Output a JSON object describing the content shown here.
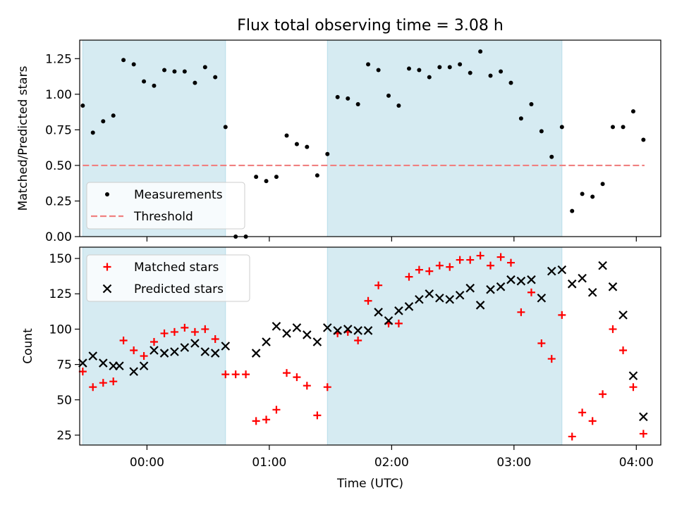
{
  "title": "Flux total observing time = 3.08 h",
  "colors": {
    "shade": "#add8e6",
    "measurement": "#000000",
    "threshold": "#f08080",
    "matched": "#ff0000",
    "predicted": "#000000"
  },
  "chart_data": [
    {
      "type": "scatter",
      "name": "ratio-panel",
      "ylabel": "Matched/Predicted stars",
      "xlabel": "",
      "xlim": [
        -0.55,
        4.2
      ],
      "ylim": [
        0,
        1.38
      ],
      "yticks": [
        0,
        0.25,
        0.5,
        0.75,
        1.0,
        1.25
      ],
      "ytick_labels": [
        "0.00",
        "0.25",
        "0.50",
        "0.75",
        "1.00",
        "1.25"
      ],
      "shaded_intervals": [
        [
          -0.525,
          0.642
        ],
        [
          1.475,
          3.392
        ]
      ],
      "legend": [
        "Measurements",
        "Threshold"
      ],
      "threshold": {
        "name": "Threshold",
        "y": 0.5,
        "x": [
          -0.525,
          4.067
        ]
      },
      "series": [
        {
          "name": "Measurements",
          "x": [
            -0.525,
            -0.442,
            -0.358,
            -0.275,
            -0.192,
            -0.108,
            -0.025,
            0.058,
            0.142,
            0.225,
            0.308,
            0.392,
            0.475,
            0.558,
            0.642,
            0.725,
            0.808,
            0.892,
            0.975,
            1.058,
            1.142,
            1.225,
            1.308,
            1.392,
            1.475,
            1.558,
            1.642,
            1.725,
            1.808,
            1.892,
            1.975,
            2.058,
            2.142,
            2.225,
            2.308,
            2.392,
            2.475,
            2.558,
            2.642,
            2.725,
            2.808,
            2.892,
            2.975,
            3.058,
            3.142,
            3.225,
            3.308,
            3.392,
            3.475,
            3.558,
            3.642,
            3.725,
            3.808,
            3.892,
            3.975,
            4.058
          ],
          "y": [
            0.92,
            0.73,
            0.81,
            0.85,
            1.24,
            1.21,
            1.09,
            1.06,
            1.17,
            1.16,
            1.16,
            1.08,
            1.19,
            1.12,
            0.77,
            0.0,
            0.0,
            0.42,
            0.39,
            0.42,
            0.71,
            0.65,
            0.63,
            0.43,
            0.58,
            0.98,
            0.97,
            0.93,
            1.21,
            1.17,
            0.99,
            0.92,
            1.18,
            1.17,
            1.12,
            1.19,
            1.19,
            1.21,
            1.15,
            1.3,
            1.13,
            1.16,
            1.08,
            0.83,
            0.93,
            0.74,
            0.56,
            0.77,
            0.18,
            0.3,
            0.28,
            0.37,
            0.77,
            0.77,
            0.88,
            0.68
          ]
        }
      ]
    },
    {
      "type": "scatter",
      "name": "count-panel",
      "xlabel": "Time (UTC)",
      "ylabel": "Count",
      "xlim": [
        -0.55,
        4.2
      ],
      "ylim": [
        18,
        158
      ],
      "xticks": [
        0,
        1,
        2,
        3,
        4
      ],
      "xtick_labels": [
        "00:00",
        "01:00",
        "02:00",
        "03:00",
        "04:00"
      ],
      "yticks": [
        25,
        50,
        75,
        100,
        125,
        150
      ],
      "ytick_labels": [
        "25",
        "50",
        "75",
        "100",
        "125",
        "150"
      ],
      "shaded_intervals": [
        [
          -0.525,
          0.642
        ],
        [
          1.475,
          3.392
        ]
      ],
      "legend": [
        "Matched stars",
        "Predicted stars"
      ],
      "series": [
        {
          "name": "Matched stars",
          "marker": "+",
          "x": [
            -0.525,
            -0.442,
            -0.358,
            -0.275,
            -0.192,
            -0.108,
            -0.025,
            0.058,
            0.142,
            0.225,
            0.308,
            0.392,
            0.475,
            0.558,
            0.642,
            0.725,
            0.808,
            0.892,
            0.975,
            1.058,
            1.142,
            1.225,
            1.308,
            1.392,
            1.475,
            1.558,
            1.642,
            1.725,
            1.808,
            1.892,
            1.975,
            2.058,
            2.142,
            2.225,
            2.308,
            2.392,
            2.475,
            2.558,
            2.642,
            2.725,
            2.808,
            2.892,
            2.975,
            3.058,
            3.142,
            3.225,
            3.308,
            3.392,
            3.475,
            3.558,
            3.642,
            3.725,
            3.808,
            3.892,
            3.975,
            4.058
          ],
          "y": [
            70,
            59,
            62,
            63,
            92,
            85,
            81,
            91,
            97,
            98,
            101,
            98,
            100,
            93,
            68,
            68,
            68,
            35,
            36,
            43,
            69,
            66,
            60,
            39,
            59,
            97,
            98,
            92,
            120,
            131,
            104,
            104,
            137,
            142,
            141,
            145,
            144,
            149,
            149,
            152,
            145,
            151,
            147,
            112,
            126,
            90,
            79,
            110,
            24,
            41,
            35,
            54,
            100,
            85,
            59,
            26
          ]
        },
        {
          "name": "Predicted stars",
          "marker": "x",
          "x": [
            -0.525,
            -0.442,
            -0.358,
            -0.275,
            -0.225,
            -0.108,
            -0.025,
            0.058,
            0.142,
            0.225,
            0.308,
            0.392,
            0.475,
            0.558,
            0.642,
            0.892,
            0.975,
            1.058,
            1.142,
            1.225,
            1.308,
            1.392,
            1.475,
            1.558,
            1.642,
            1.725,
            1.808,
            1.892,
            1.975,
            2.058,
            2.142,
            2.225,
            2.308,
            2.392,
            2.475,
            2.558,
            2.642,
            2.725,
            2.808,
            2.892,
            2.975,
            3.058,
            3.142,
            3.225,
            3.308,
            3.392,
            3.475,
            3.558,
            3.642,
            3.725,
            3.808,
            3.892,
            3.975,
            4.058
          ],
          "y": [
            76,
            81,
            76,
            74,
            74,
            70,
            74,
            85,
            83,
            84,
            87,
            90,
            84,
            83,
            88,
            83,
            91,
            102,
            97,
            101,
            96,
            91,
            101,
            99,
            100,
            99,
            99,
            112,
            106,
            113,
            116,
            121,
            125,
            122,
            121,
            124,
            129,
            117,
            128,
            130,
            135,
            134,
            135,
            122,
            141,
            142,
            132,
            136,
            126,
            145,
            130,
            110,
            67,
            38
          ]
        }
      ]
    }
  ]
}
